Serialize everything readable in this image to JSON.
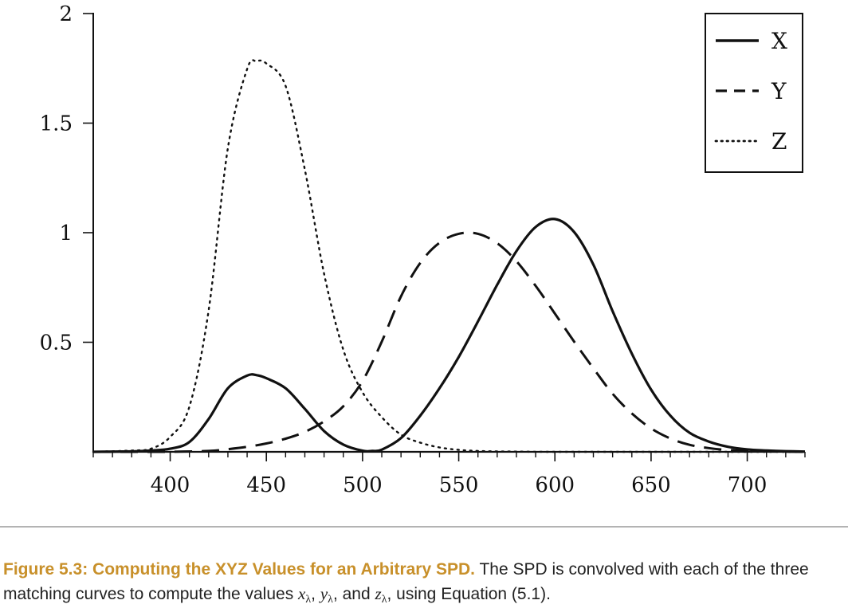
{
  "chart_data": {
    "type": "line",
    "title": "",
    "xlabel": "",
    "ylabel": "",
    "xlim": [
      360,
      730
    ],
    "ylim": [
      0,
      2
    ],
    "x_major_ticks": [
      400,
      450,
      500,
      550,
      600,
      650,
      700
    ],
    "x_tick_labels": [
      "400",
      "450",
      "500",
      "550",
      "600",
      "650",
      "700"
    ],
    "x_minor_step": 10,
    "y_ticks": [
      0.5,
      1,
      1.5,
      2
    ],
    "y_tick_labels": [
      "0.5",
      "1",
      "1.5",
      "2"
    ],
    "grid": false,
    "legend_position": "top-right",
    "series": [
      {
        "name": "X",
        "style": "solid",
        "color": "#111111",
        "x": [
          360,
          380,
          390,
          400,
          410,
          420,
          430,
          440,
          445,
          450,
          460,
          470,
          480,
          490,
          500,
          505,
          510,
          520,
          530,
          540,
          550,
          560,
          570,
          580,
          590,
          600,
          610,
          620,
          630,
          640,
          650,
          660,
          670,
          680,
          690,
          700,
          710,
          720,
          730
        ],
        "y": [
          0.0,
          0.002,
          0.006,
          0.014,
          0.045,
          0.15,
          0.29,
          0.348,
          0.35,
          0.336,
          0.29,
          0.196,
          0.095,
          0.033,
          0.005,
          0.004,
          0.01,
          0.063,
          0.165,
          0.29,
          0.433,
          0.595,
          0.762,
          0.916,
          1.026,
          1.062,
          1.003,
          0.854,
          0.642,
          0.448,
          0.284,
          0.165,
          0.087,
          0.047,
          0.023,
          0.011,
          0.006,
          0.003,
          0.001
        ]
      },
      {
        "name": "Y",
        "style": "dashed",
        "color": "#111111",
        "x": [
          360,
          380,
          400,
          420,
          430,
          440,
          450,
          460,
          470,
          480,
          490,
          500,
          510,
          520,
          530,
          540,
          550,
          560,
          570,
          580,
          590,
          600,
          610,
          620,
          630,
          640,
          650,
          660,
          670,
          680,
          690,
          700,
          710,
          720,
          730
        ],
        "y": [
          0.0,
          0.0,
          0.0004,
          0.004,
          0.012,
          0.023,
          0.038,
          0.06,
          0.091,
          0.139,
          0.208,
          0.323,
          0.503,
          0.71,
          0.862,
          0.954,
          0.995,
          0.995,
          0.952,
          0.87,
          0.757,
          0.631,
          0.503,
          0.381,
          0.265,
          0.175,
          0.107,
          0.061,
          0.032,
          0.017,
          0.008,
          0.004,
          0.002,
          0.001,
          0.0
        ]
      },
      {
        "name": "Z",
        "style": "dotted",
        "color": "#111111",
        "x": [
          360,
          380,
          390,
          400,
          410,
          420,
          430,
          440,
          445,
          450,
          460,
          470,
          480,
          490,
          500,
          510,
          520,
          530,
          540,
          550,
          560,
          570,
          580,
          600,
          650,
          700,
          730
        ],
        "y": [
          0.0,
          0.006,
          0.014,
          0.068,
          0.207,
          0.646,
          1.386,
          1.747,
          1.782,
          1.772,
          1.669,
          1.288,
          0.813,
          0.465,
          0.272,
          0.158,
          0.078,
          0.042,
          0.02,
          0.009,
          0.004,
          0.002,
          0.001,
          0.0,
          0.0,
          0.0,
          0.0
        ]
      }
    ]
  },
  "caption": {
    "figure_title": "Figure 5.3: Computing the XYZ Values for an Arbitrary SPD.",
    "text_1": " The SPD is convolved with each of the three matching curves to compute the values ",
    "x_var": "x",
    "y_var": "y",
    "z_var": "z",
    "subscript": "λ",
    "sep_1": ", ",
    "sep_2": ", and ",
    "text_2": ", using Equation (5.1)."
  }
}
